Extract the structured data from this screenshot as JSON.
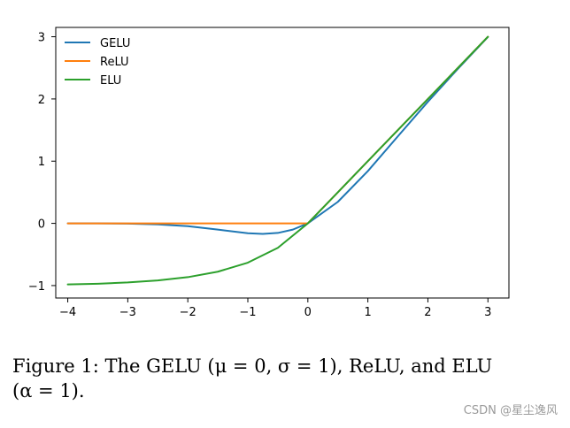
{
  "chart_data": {
    "type": "line",
    "title": "",
    "xlabel": "",
    "ylabel": "",
    "xlim": [
      -4.2,
      3.35
    ],
    "ylim": [
      -1.2,
      3.15
    ],
    "xticks": [
      "-4",
      "-3",
      "-2",
      "-1",
      "0",
      "1",
      "2",
      "3"
    ],
    "yticks": [
      "-1",
      "0",
      "1",
      "2",
      "3"
    ],
    "grid": false,
    "legend_position": "top-left",
    "series": [
      {
        "name": "GELU",
        "color": "#1f77b4",
        "x": [
          -4,
          -3.5,
          -3,
          -2.5,
          -2,
          -1.5,
          -1,
          -0.75,
          -0.5,
          -0.25,
          0,
          0.5,
          1,
          1.5,
          2,
          2.5,
          3
        ],
        "y": [
          0,
          -0.001,
          -0.004,
          -0.016,
          -0.045,
          -0.1,
          -0.159,
          -0.17,
          -0.154,
          -0.1,
          0,
          0.346,
          0.841,
          1.4,
          1.955,
          2.485,
          2.996
        ]
      },
      {
        "name": "ReLU",
        "color": "#ff7f0e",
        "x": [
          -4,
          -3,
          -2,
          -1,
          0,
          1,
          2,
          3
        ],
        "y": [
          0,
          0,
          0,
          0,
          0,
          1,
          2,
          3
        ]
      },
      {
        "name": "ELU",
        "color": "#2ca02c",
        "x": [
          -4,
          -3.5,
          -3,
          -2.5,
          -2,
          -1.5,
          -1,
          -0.5,
          0,
          1,
          2,
          3
        ],
        "y": [
          -0.982,
          -0.97,
          -0.95,
          -0.918,
          -0.865,
          -0.777,
          -0.632,
          -0.393,
          0,
          1,
          2,
          3
        ]
      }
    ]
  },
  "caption": {
    "line1": "Figure 1: The GELU (μ = 0, σ = 1), ReLU, and ELU",
    "line2": "(α = 1)."
  },
  "watermark": "CSDN @星尘逸风"
}
